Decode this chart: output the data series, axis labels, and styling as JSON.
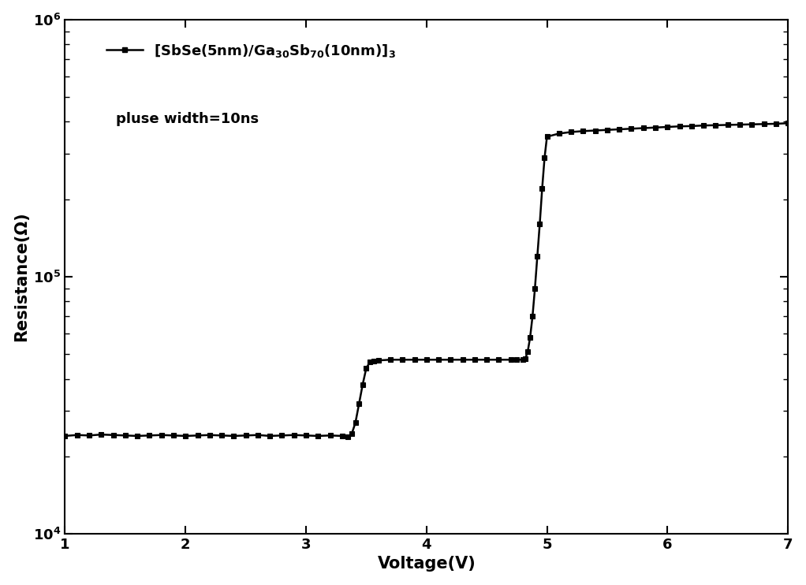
{
  "xlabel": "Voltage(V)",
  "ylabel": "Resistance(Ω)",
  "xlim": [
    1,
    7
  ],
  "ylim": [
    10000.0,
    1000000.0
  ],
  "line_color": "#000000",
  "marker": "s",
  "markersize": 4,
  "linewidth": 1.8,
  "legend_text": "$[SbSe(5nm)/Ga_{30}Sb_{70}(10nm)]_3$",
  "annotation": "pluse width=10ns",
  "background_color": "#ffffff",
  "x_data": [
    1.0,
    1.1,
    1.2,
    1.3,
    1.4,
    1.5,
    1.6,
    1.7,
    1.8,
    1.9,
    2.0,
    2.1,
    2.2,
    2.3,
    2.4,
    2.5,
    2.6,
    2.7,
    2.8,
    2.9,
    3.0,
    3.1,
    3.2,
    3.3,
    3.35,
    3.38,
    3.41,
    3.44,
    3.47,
    3.5,
    3.53,
    3.56,
    3.6,
    3.7,
    3.8,
    3.9,
    4.0,
    4.1,
    4.2,
    4.3,
    4.4,
    4.5,
    4.6,
    4.7,
    4.75,
    4.8,
    4.82,
    4.84,
    4.86,
    4.88,
    4.9,
    4.92,
    4.94,
    4.96,
    4.98,
    5.0,
    5.1,
    5.2,
    5.3,
    5.4,
    5.5,
    5.6,
    5.7,
    5.8,
    5.9,
    6.0,
    6.1,
    6.2,
    6.3,
    6.4,
    6.5,
    6.6,
    6.7,
    6.8,
    6.9,
    7.0
  ],
  "y_data": [
    24000,
    24200,
    24100,
    24300,
    24200,
    24100,
    24000,
    24100,
    24200,
    24100,
    24000,
    24100,
    24200,
    24100,
    24000,
    24100,
    24200,
    24000,
    24100,
    24200,
    24100,
    24000,
    24100,
    24000,
    23800,
    24500,
    27000,
    32000,
    38000,
    44000,
    46500,
    47000,
    47200,
    47500,
    47500,
    47500,
    47500,
    47500,
    47500,
    47500,
    47500,
    47500,
    47500,
    47500,
    47500,
    47500,
    48000,
    51000,
    58000,
    70000,
    90000,
    120000,
    160000,
    220000,
    290000,
    350000,
    360000,
    365000,
    368000,
    370000,
    372000,
    374000,
    376000,
    378000,
    380000,
    382000,
    384000,
    385000,
    387000,
    388000,
    389000,
    390000,
    391000,
    392000,
    393000,
    395000
  ]
}
